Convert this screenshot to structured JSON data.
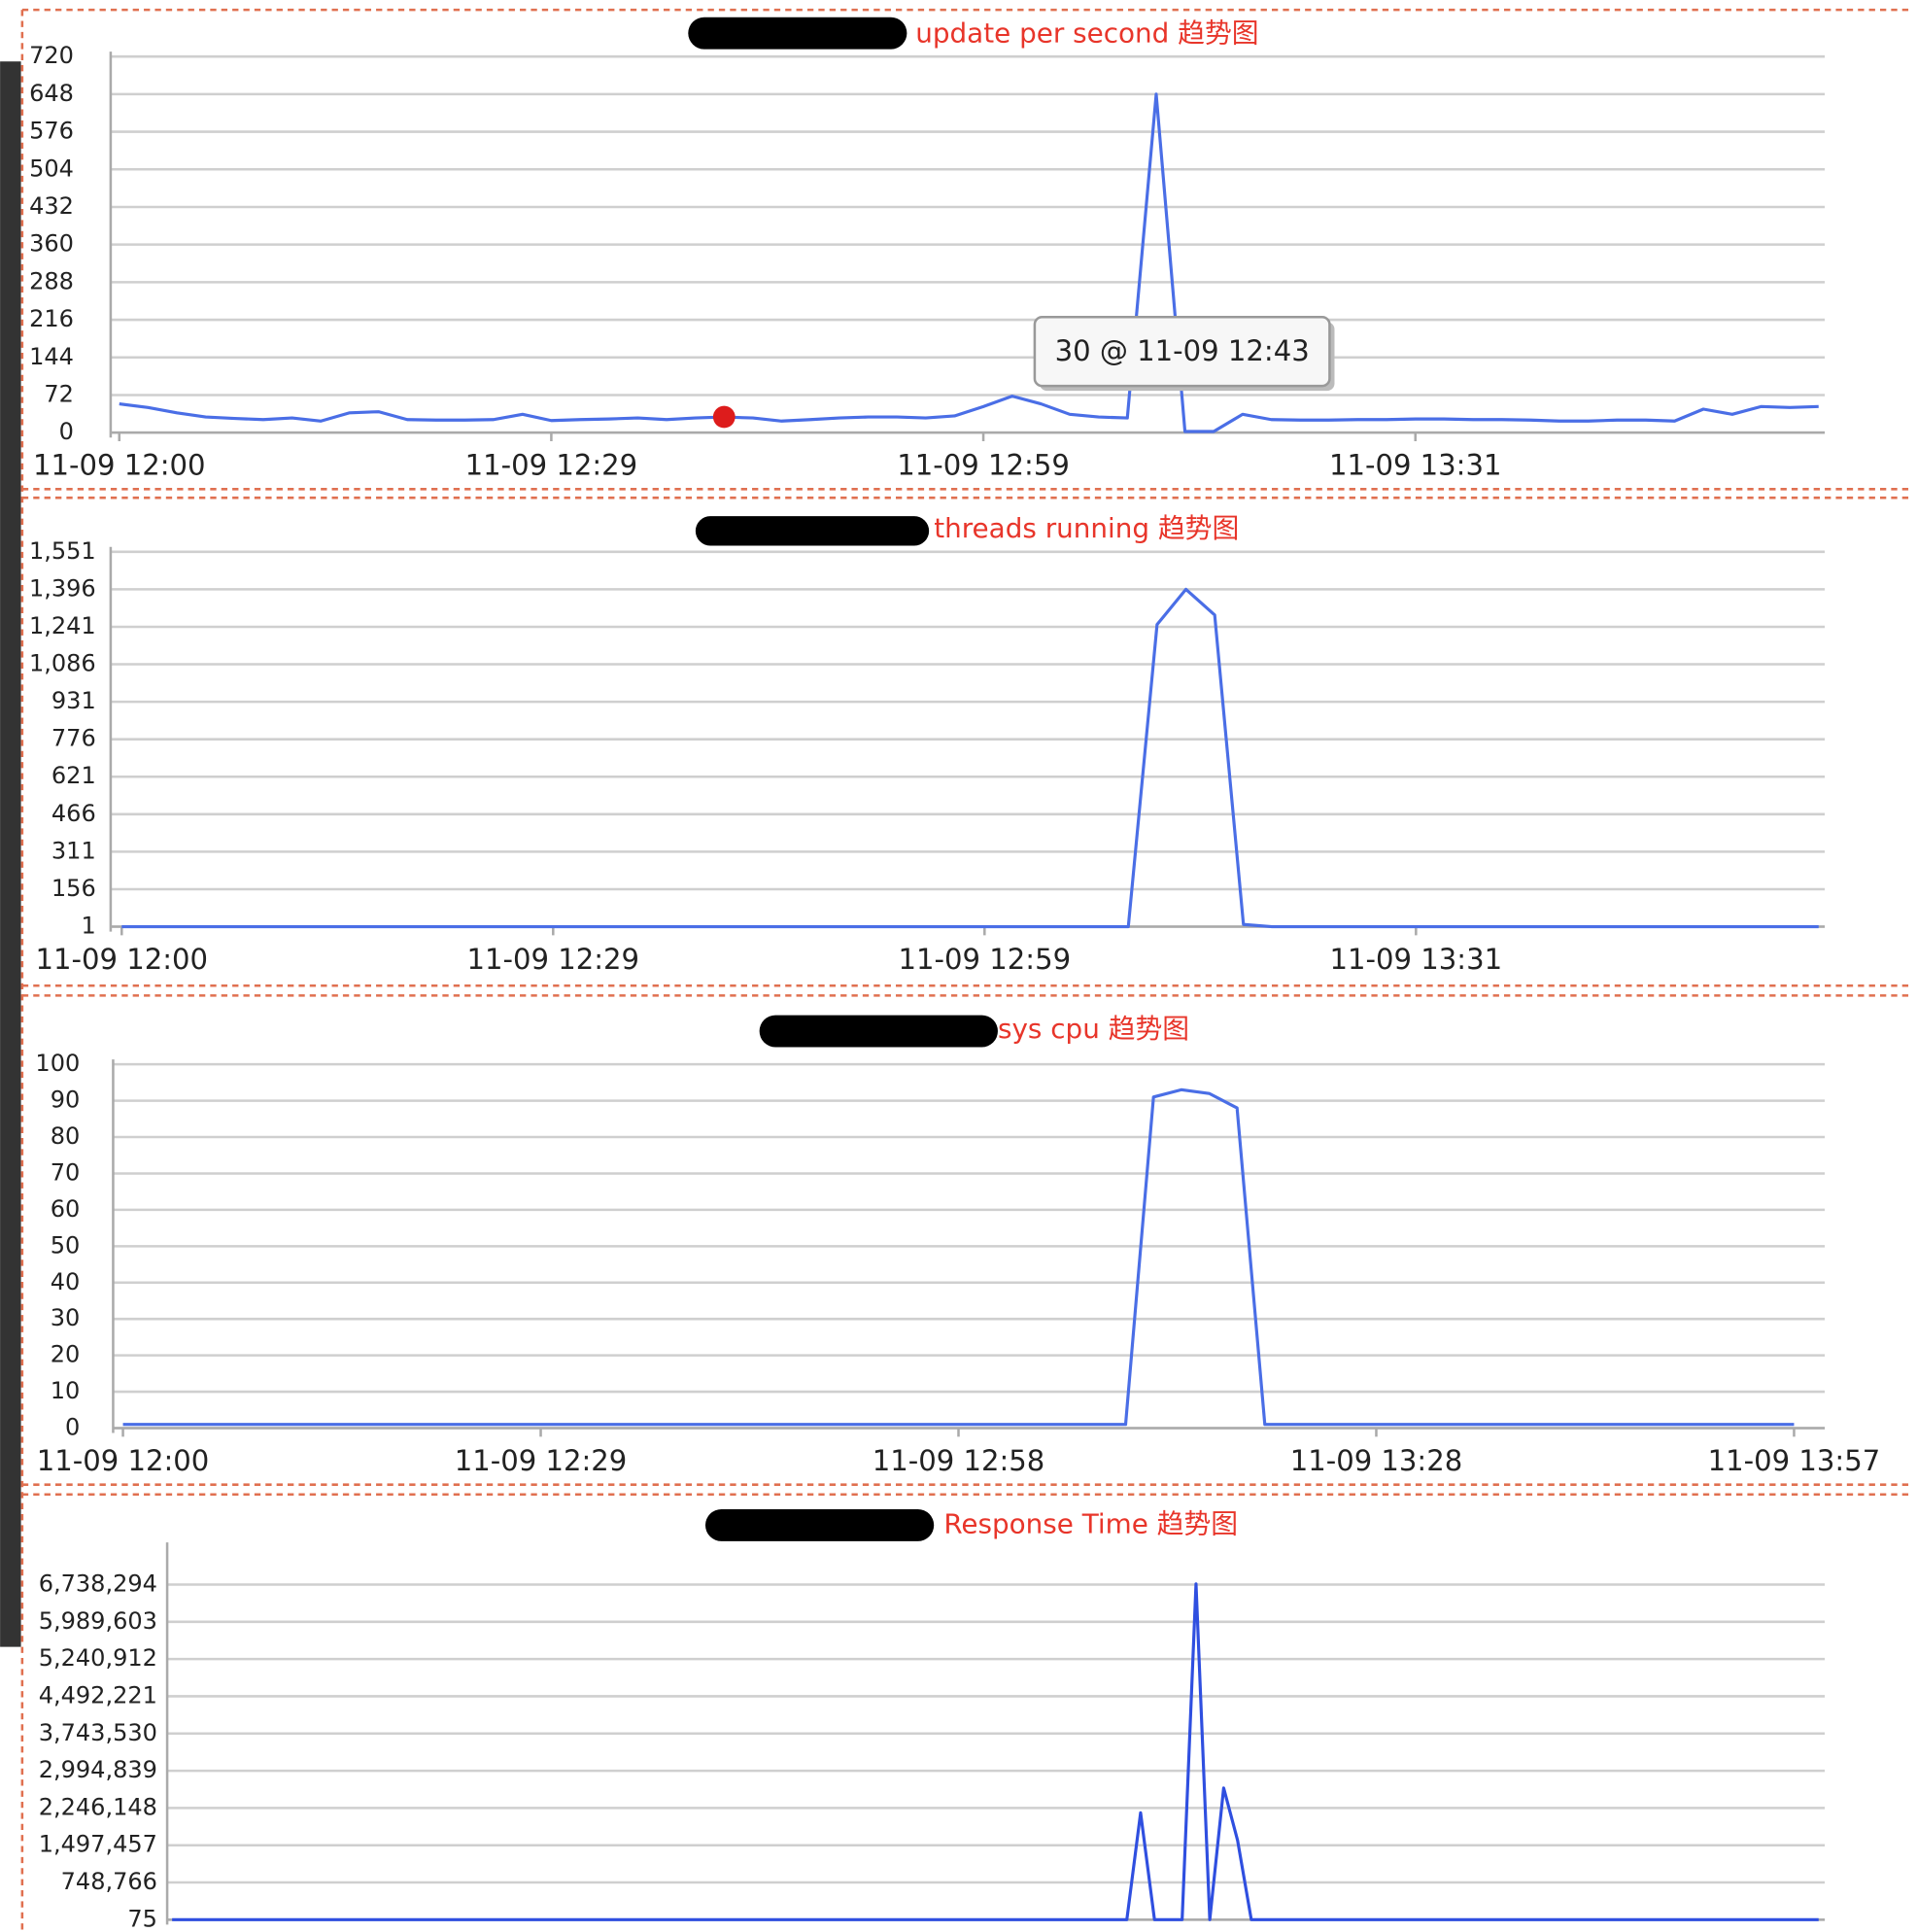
{
  "chart_data": [
    {
      "type": "line",
      "title": "update per second 趋势图",
      "tooltip": "30 @ 11-09 12:43",
      "color": "#4a6ee6",
      "grid": true,
      "categories": [
        "11-09 12:00",
        null,
        null,
        null,
        null,
        null,
        null,
        null,
        null,
        null,
        null,
        null,
        null,
        null,
        null,
        "11-09 12:29",
        null,
        null,
        null,
        null,
        null,
        null,
        null,
        null,
        null,
        null,
        null,
        null,
        null,
        null,
        "11-09 12:59",
        null,
        null,
        null,
        null,
        null,
        null,
        null,
        null,
        null,
        null,
        null,
        null,
        null,
        null,
        "11-09 13:31",
        null,
        null,
        null,
        null,
        null,
        null,
        null,
        null,
        null,
        null,
        null,
        null,
        null,
        null
      ],
      "values": [
        55,
        48,
        38,
        30,
        27,
        25,
        28,
        22,
        38,
        40,
        25,
        24,
        24,
        25,
        35,
        23,
        25,
        26,
        28,
        25,
        28,
        30,
        28,
        22,
        25,
        28,
        30,
        30,
        28,
        32,
        50,
        70,
        55,
        35,
        30,
        28,
        648,
        2,
        2,
        35,
        25,
        24,
        24,
        25,
        25,
        26,
        26,
        25,
        25,
        24,
        22,
        22,
        24,
        24,
        22,
        45,
        35,
        50,
        48,
        50
      ],
      "ylim": [
        0,
        720
      ],
      "yticks": [
        0,
        72,
        144,
        216,
        288,
        360,
        432,
        504,
        576,
        648,
        720
      ]
    },
    {
      "type": "line",
      "title": "threads running 趋势图",
      "color": "#4a6ee6",
      "grid": true,
      "categories": [
        "11-09 12:00",
        null,
        null,
        null,
        null,
        null,
        null,
        null,
        null,
        null,
        null,
        null,
        null,
        null,
        null,
        "11-09 12:29",
        null,
        null,
        null,
        null,
        null,
        null,
        null,
        null,
        null,
        null,
        null,
        null,
        null,
        null,
        "11-09 12:59",
        null,
        null,
        null,
        null,
        null,
        null,
        null,
        null,
        null,
        null,
        null,
        null,
        null,
        null,
        "11-09 13:31",
        null,
        null,
        null,
        null,
        null,
        null,
        null,
        null,
        null,
        null,
        null,
        null,
        null,
        null
      ],
      "values": [
        1,
        1,
        1,
        1,
        1,
        1,
        1,
        1,
        1,
        1,
        1,
        1,
        1,
        1,
        1,
        1,
        1,
        1,
        1,
        1,
        1,
        1,
        1,
        1,
        1,
        1,
        1,
        1,
        1,
        1,
        1,
        1,
        1,
        1,
        1,
        1,
        1250,
        1396,
        1290,
        10,
        1,
        1,
        1,
        1,
        1,
        1,
        1,
        1,
        1,
        1,
        1,
        1,
        1,
        1,
        1,
        1,
        1,
        1,
        1,
        1
      ],
      "ylim": [
        1,
        1551
      ],
      "yticks": [
        1,
        156,
        311,
        466,
        621,
        776,
        931,
        {
          "value": 1086,
          "label": "1,086"
        },
        {
          "value": 1241,
          "label": "1,241"
        },
        {
          "value": 1396,
          "label": "1,396"
        },
        {
          "value": 1551,
          "label": "1,551"
        }
      ]
    },
    {
      "type": "line",
      "title": "sys cpu 趋势图",
      "color": "#4a6ee6",
      "grid": true,
      "categories": [
        "11-09 12:00",
        null,
        null,
        null,
        null,
        null,
        null,
        null,
        null,
        null,
        null,
        null,
        null,
        null,
        null,
        "11-09 12:29",
        null,
        null,
        null,
        null,
        null,
        null,
        null,
        null,
        null,
        null,
        null,
        null,
        null,
        null,
        "11-09 12:58",
        null,
        null,
        null,
        null,
        null,
        null,
        null,
        null,
        null,
        null,
        null,
        null,
        null,
        null,
        "11-09 13:28",
        null,
        null,
        null,
        null,
        null,
        null,
        null,
        null,
        null,
        null,
        null,
        null,
        null,
        null,
        "11-09 13:57"
      ],
      "values": [
        1,
        1,
        1,
        1,
        1,
        1,
        1,
        1,
        1,
        1,
        1,
        1,
        1,
        1,
        1,
        1,
        1,
        1,
        1,
        1,
        1,
        1,
        1,
        1,
        1,
        1,
        1,
        1,
        1,
        1,
        1,
        1,
        1,
        1,
        1,
        1,
        1,
        91,
        93,
        92,
        88,
        1,
        1,
        1,
        1,
        1,
        1,
        1,
        1,
        1,
        1,
        1,
        1,
        1,
        1,
        1,
        1,
        1,
        1,
        1,
        1
      ],
      "ylim": [
        0,
        100
      ],
      "yticks": [
        0,
        10,
        20,
        30,
        40,
        50,
        60,
        70,
        80,
        90,
        100
      ]
    },
    {
      "type": "line",
      "title": "Response Time 趋势图",
      "color": "#2f4fe0",
      "grid": true,
      "values": [
        75,
        75,
        75,
        75,
        75,
        75,
        75,
        75,
        75,
        75,
        75,
        75,
        75,
        75,
        75,
        75,
        75,
        75,
        75,
        75,
        75,
        75,
        75,
        75,
        75,
        75,
        75,
        75,
        75,
        75,
        75,
        75,
        75,
        75,
        75,
        75,
        75,
        75,
        75,
        75,
        75,
        75,
        75,
        75,
        75,
        75,
        75,
        75,
        75,
        75,
        75,
        75,
        75,
        75,
        75,
        75,
        75,
        75,
        75,
        75,
        75,
        75,
        75,
        75,
        75,
        75,
        75,
        75,
        75,
        75,
        2150000,
        75,
        75,
        75,
        6750000,
        75,
        2650000,
        1600000,
        75,
        75,
        75,
        75,
        75,
        75,
        75,
        75,
        75,
        75,
        75,
        75,
        75,
        75,
        75,
        75,
        75,
        75,
        75,
        75,
        75,
        75,
        75,
        75,
        75,
        75,
        75,
        75,
        75,
        75,
        75,
        75,
        75,
        75,
        75,
        75,
        75,
        75,
        75,
        75,
        75,
        75
      ],
      "ylim": [
        75,
        7486985
      ],
      "yticks": [
        75,
        {
          "value": 748766,
          "label": "748,766"
        },
        {
          "value": 1497457,
          "label": "1,497,457"
        },
        {
          "value": 2246148,
          "label": "2,246,148"
        },
        {
          "value": 2994839,
          "label": "2,994,839"
        },
        {
          "value": 3743530,
          "label": "3,743,530"
        },
        {
          "value": 4492221,
          "label": "4,492,221"
        },
        {
          "value": 5240912,
          "label": "5,240,912"
        },
        {
          "value": 5989603,
          "label": "5,989,603"
        },
        {
          "value": 6738294,
          "label": "6,738,294"
        }
      ]
    }
  ]
}
